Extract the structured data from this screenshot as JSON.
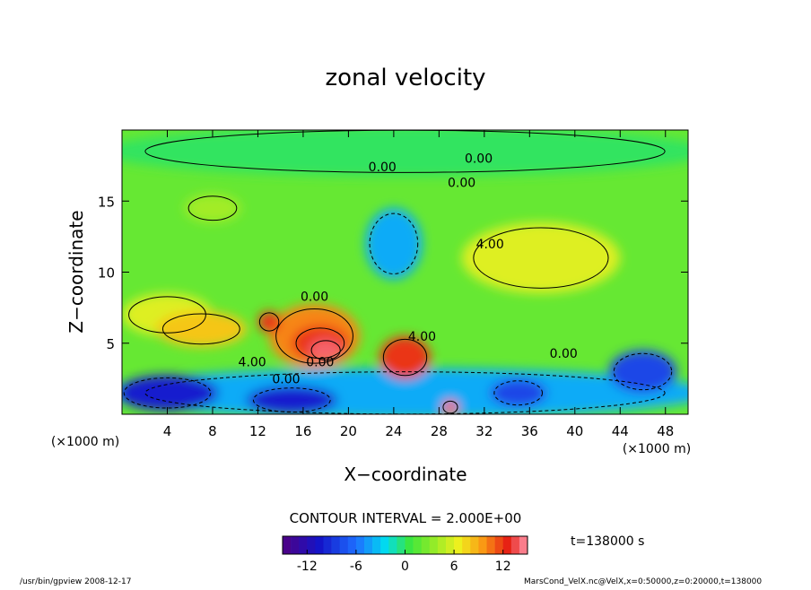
{
  "chart_data": {
    "type": "contour",
    "title": "zonal velocity",
    "xlabel": "X−coordinate",
    "ylabel": "Z−coordinate",
    "xunit": "(×1000 m)",
    "yunit": "(×1000 m)",
    "xlim": [
      0,
      50
    ],
    "xticks": [
      4,
      8,
      12,
      16,
      20,
      24,
      28,
      32,
      36,
      40,
      44,
      48
    ],
    "ylim": [
      0,
      20
    ],
    "yticks": [
      5,
      10,
      15
    ],
    "background_value": 2,
    "features": [
      {
        "x": 25,
        "z": 18.5,
        "value": 0,
        "w": 54,
        "h": 3.5
      },
      {
        "x": 25,
        "z": 1.5,
        "value": -4,
        "w": 54,
        "h": 3.5
      },
      {
        "x": 4,
        "z": 1.5,
        "value": -10,
        "w": 9,
        "h": 2.5
      },
      {
        "x": 15,
        "z": 1,
        "value": -10,
        "w": 8,
        "h": 2
      },
      {
        "x": 35,
        "z": 1.5,
        "value": -8,
        "w": 5,
        "h": 2
      },
      {
        "x": 46,
        "z": 3,
        "value": -8,
        "w": 6,
        "h": 3
      },
      {
        "x": 24,
        "z": 12,
        "value": -4,
        "w": 5,
        "h": 5
      },
      {
        "x": 37,
        "z": 11,
        "value": 6,
        "w": 14,
        "h": 5
      },
      {
        "x": 8,
        "z": 14.5,
        "value": 4,
        "w": 5,
        "h": 2
      },
      {
        "x": 4,
        "z": 7,
        "value": 6,
        "w": 8,
        "h": 3
      },
      {
        "x": 7,
        "z": 6,
        "value": 8,
        "w": 8,
        "h": 2.5
      },
      {
        "x": 17,
        "z": 5.5,
        "value": 10,
        "w": 8,
        "h": 4.5
      },
      {
        "x": 13,
        "z": 6.5,
        "value": 12,
        "w": 2,
        "h": 1.5
      },
      {
        "x": 17.5,
        "z": 5,
        "value": 12,
        "w": 5,
        "h": 2.5
      },
      {
        "x": 18,
        "z": 4.5,
        "value": 14,
        "w": 3,
        "h": 1.6
      },
      {
        "x": 25,
        "z": 4,
        "value": 12,
        "w": 4.5,
        "h": 3
      },
      {
        "x": 29,
        "z": 0.5,
        "value": 14,
        "w": 1.5,
        "h": 1
      }
    ],
    "contour_labels": [
      {
        "x": 23,
        "z": 17.4,
        "label": "0.00"
      },
      {
        "x": 31.5,
        "z": 18,
        "label": "0.00"
      },
      {
        "x": 30,
        "z": 16.3,
        "label": "0.00"
      },
      {
        "x": 32.5,
        "z": 12,
        "label": "4.00"
      },
      {
        "x": 17,
        "z": 8.3,
        "label": "0.00"
      },
      {
        "x": 26.5,
        "z": 5.5,
        "label": "4.00"
      },
      {
        "x": 11.5,
        "z": 3.7,
        "label": "4.00"
      },
      {
        "x": 14.5,
        "z": 2.5,
        "label": "0.00"
      },
      {
        "x": 17.5,
        "z": 3.7,
        "label": "0.00"
      },
      {
        "x": 39,
        "z": 4.3,
        "label": "0.00"
      }
    ],
    "contour_interval": "CONTOUR INTERVAL = 2.000E+00",
    "clim": [
      -15,
      15
    ],
    "cticks": [
      -12,
      -6,
      0,
      6,
      12
    ],
    "time_label": "t=138000 s",
    "footer_left": "/usr/bin/gpview  2008-12-17",
    "footer_right": "MarsCond_VelX.nc@VelX,x=0:50000,z=0:20000,t=138000"
  }
}
